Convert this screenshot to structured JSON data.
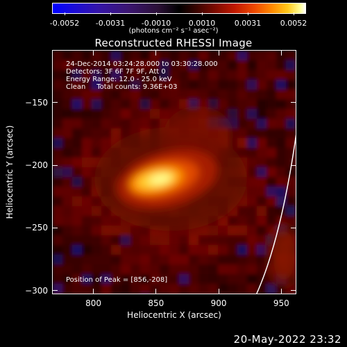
{
  "colorbar": {
    "ticks": [
      "-0.0052",
      "-0.0031",
      "-0.0010",
      "0.0010",
      "0.0031",
      "0.0052"
    ],
    "units": "(photons cm⁻² s⁻¹ asec⁻²)"
  },
  "title": "Reconstructed RHESSI Image",
  "info": {
    "time_range": "24-Dec-2014 03:24:28.000 to 03:30:28.000",
    "detectors": "Detectors: 3F 6F 7F 9F, Att 0",
    "energy_range": "Energy Range: 12.0 - 25.0 keV",
    "clean_counts": "Clean     Total counts: 9.36E+03",
    "peak_position": "Position of Peak = [856,-208]"
  },
  "chart_data": {
    "type": "heatmap",
    "title": "Reconstructed RHESSI Image",
    "xlabel": "Heliocentric X (arcsec)",
    "ylabel": "Heliocentric Y (arcsec)",
    "xlim": [
      767,
      962
    ],
    "ylim": [
      -303,
      -108
    ],
    "x_ticks": [
      "800",
      "850",
      "900",
      "950"
    ],
    "y_ticks": [
      "-150",
      "-200",
      "-250",
      "-300"
    ],
    "colorbar_range": [
      -0.0052,
      0.0052
    ],
    "peak": [
      856,
      -208
    ],
    "colormap": "blue-black-red-yellow-white"
  },
  "footer": {
    "date": "20-May-2022 23:32"
  }
}
